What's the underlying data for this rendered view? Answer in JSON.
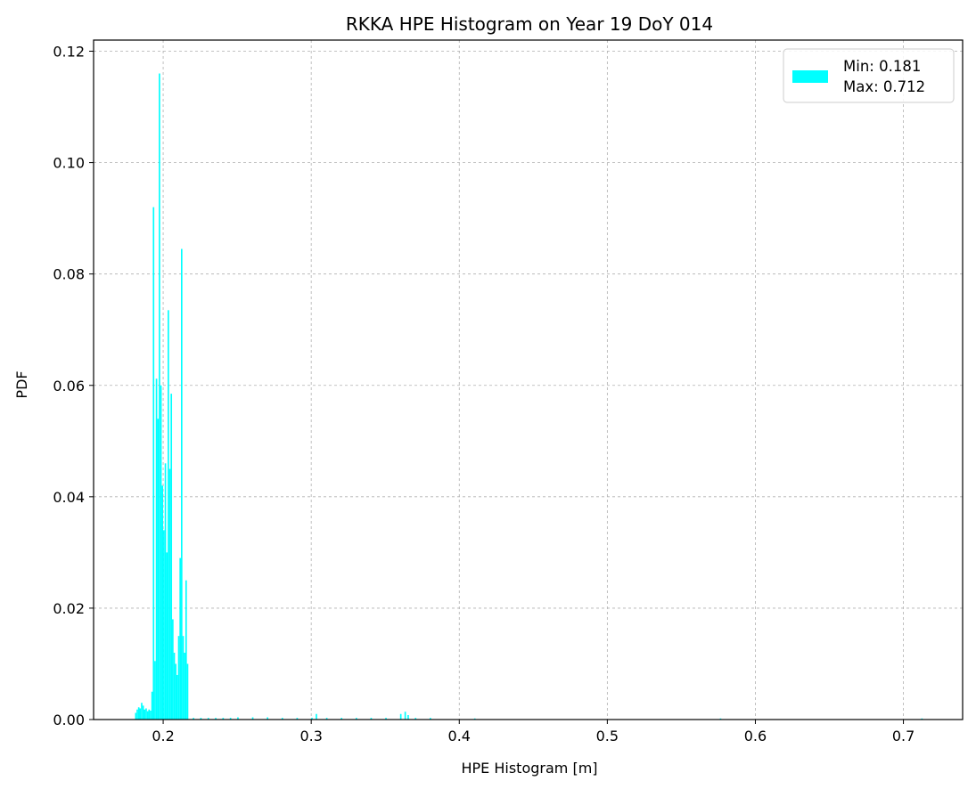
{
  "chart_data": {
    "type": "bar",
    "title": "RKKA HPE Histogram on Year 19 DoY 014",
    "xlabel": "HPE Histogram [m]",
    "ylabel": "PDF",
    "xlim": [
      0.153,
      0.74
    ],
    "ylim": [
      0,
      0.122
    ],
    "xticks": [
      0.2,
      0.3,
      0.4,
      0.5,
      0.6,
      0.7
    ],
    "yticks": [
      0.0,
      0.02,
      0.04,
      0.06,
      0.08,
      0.1,
      0.12
    ],
    "xtick_labels": [
      "0.2",
      "0.3",
      "0.4",
      "0.5",
      "0.6",
      "0.7"
    ],
    "ytick_labels": [
      "0.00",
      "0.02",
      "0.04",
      "0.06",
      "0.08",
      "0.10",
      "0.12"
    ],
    "grid": true,
    "legend_position": "top-right",
    "legend": {
      "label_line1": "Min: 0.181",
      "label_line2": "Max: 0.712"
    },
    "bar_color": "#00ffff",
    "bin_width": 0.001,
    "series": [
      {
        "x": [
          0.181,
          0.182,
          0.183,
          0.184,
          0.185,
          0.186,
          0.187,
          0.188,
          0.189,
          0.19,
          0.191,
          0.192,
          0.193,
          0.194,
          0.195,
          0.196,
          0.197,
          0.198,
          0.199,
          0.2,
          0.201,
          0.202,
          0.203,
          0.204,
          0.205,
          0.206,
          0.207,
          0.208,
          0.209,
          0.21,
          0.211,
          0.212,
          0.213,
          0.214,
          0.215,
          0.216,
          0.22,
          0.225,
          0.23,
          0.235,
          0.24,
          0.245,
          0.25,
          0.26,
          0.27,
          0.28,
          0.29,
          0.3,
          0.303,
          0.31,
          0.32,
          0.33,
          0.34,
          0.35,
          0.36,
          0.363,
          0.365,
          0.37,
          0.38,
          0.41,
          0.576,
          0.712
        ],
        "values": [
          0.0012,
          0.0018,
          0.0022,
          0.002,
          0.003,
          0.0025,
          0.0018,
          0.002,
          0.0015,
          0.0018,
          0.0016,
          0.005,
          0.092,
          0.0105,
          0.0612,
          0.054,
          0.116,
          0.06,
          0.042,
          0.034,
          0.046,
          0.03,
          0.0735,
          0.045,
          0.0585,
          0.018,
          0.012,
          0.01,
          0.008,
          0.015,
          0.029,
          0.0845,
          0.015,
          0.012,
          0.025,
          0.01,
          0.0003,
          0.0003,
          0.0003,
          0.0003,
          0.0003,
          0.0003,
          0.0004,
          0.0004,
          0.0004,
          0.0003,
          0.0003,
          0.0003,
          0.001,
          0.0003,
          0.0003,
          0.0003,
          0.0003,
          0.0003,
          0.001,
          0.0014,
          0.0008,
          0.0003,
          0.0003,
          0.0002,
          0.0002,
          0.0002
        ]
      }
    ]
  }
}
